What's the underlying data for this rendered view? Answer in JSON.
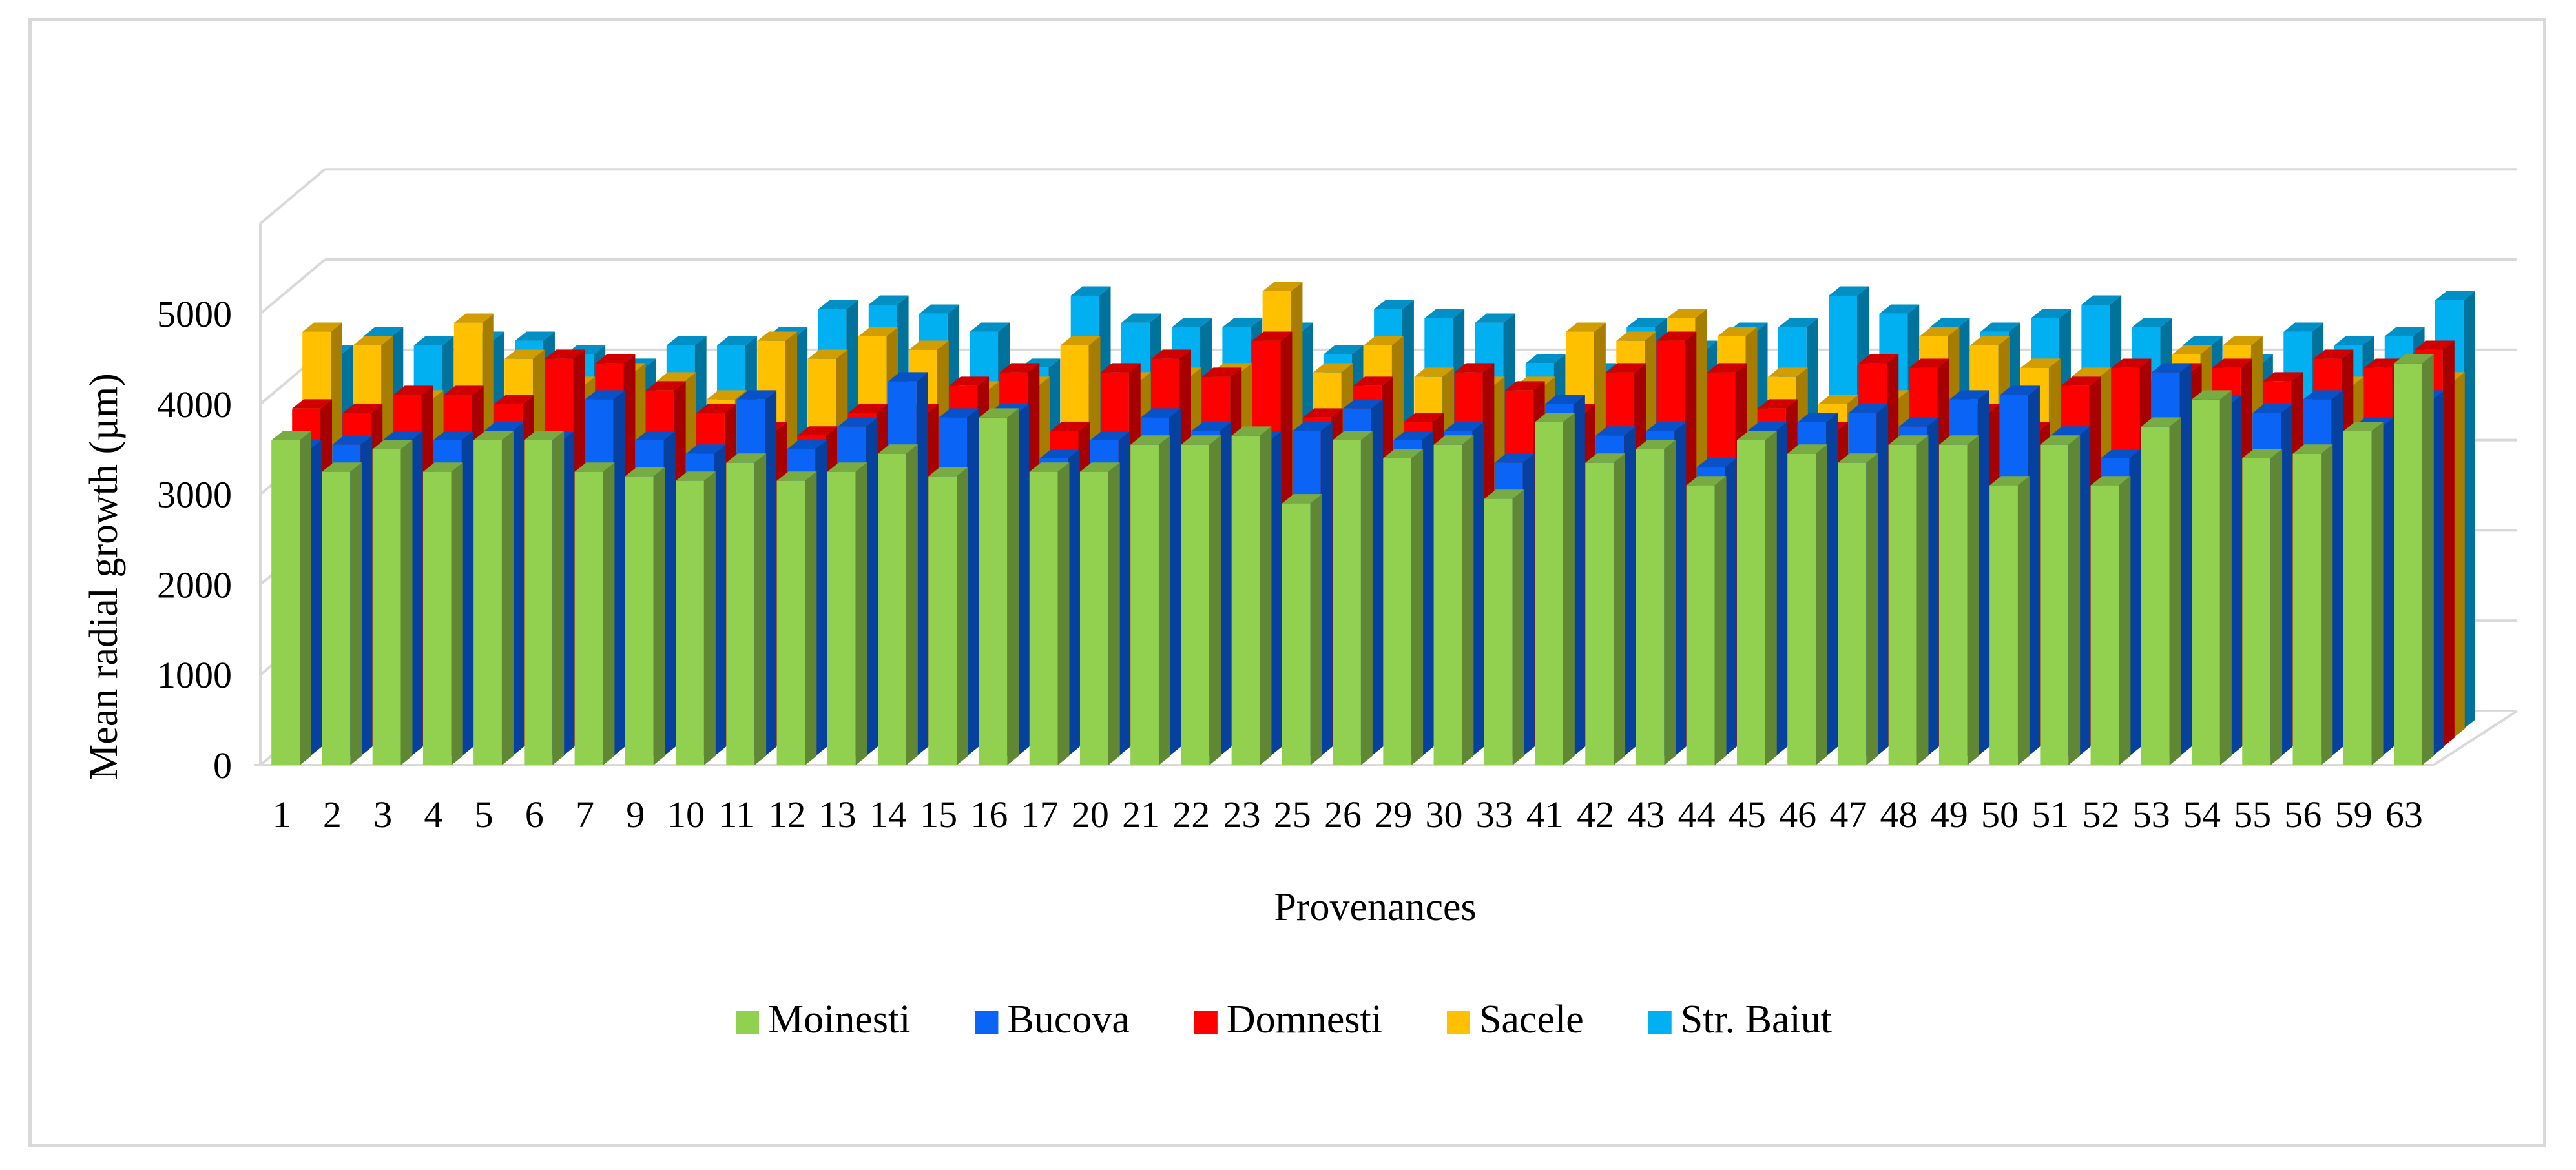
{
  "chart_data": {
    "type": "bar",
    "variant": "3d-clustered",
    "title": "",
    "xlabel": "Provenances",
    "ylabel": "Mean radial growth (µm)",
    "ylim": [
      0,
      5000
    ],
    "yticks": [
      0,
      1000,
      2000,
      3000,
      4000,
      5000
    ],
    "grid": true,
    "legend_position": "bottom",
    "categories": [
      "1",
      "2",
      "3",
      "4",
      "5",
      "6",
      "7",
      "9",
      "10",
      "11",
      "12",
      "13",
      "14",
      "15",
      "16",
      "17",
      "20",
      "21",
      "22",
      "23",
      "25",
      "26",
      "29",
      "30",
      "33",
      "41",
      "42",
      "43",
      "44",
      "45",
      "46",
      "47",
      "48",
      "49",
      "50",
      "51",
      "52",
      "53",
      "54",
      "55",
      "56",
      "59",
      "63"
    ],
    "series": [
      {
        "name": "Moinesti",
        "color": "#92d050",
        "values": [
          3600,
          3250,
          3500,
          3250,
          3600,
          3600,
          3250,
          3200,
          3150,
          3350,
          3150,
          3250,
          3450,
          3200,
          3850,
          3250,
          3250,
          3550,
          3550,
          3650,
          2900,
          3600,
          3400,
          3550,
          2950,
          3800,
          3350,
          3500,
          3100,
          3600,
          3450,
          3350,
          3550,
          3550,
          3100,
          3550,
          3100,
          3750,
          4050,
          3400,
          3450,
          3700,
          4450
        ]
      },
      {
        "name": "Bucova",
        "color": "#0a64f5",
        "values": [
          3400,
          3450,
          3500,
          3500,
          3600,
          3500,
          3950,
          3500,
          3350,
          3950,
          3400,
          3650,
          4150,
          3750,
          3800,
          3300,
          3500,
          3750,
          3600,
          3500,
          3600,
          3850,
          3500,
          3600,
          3250,
          3900,
          3550,
          3600,
          3200,
          3600,
          3700,
          3800,
          3650,
          3950,
          4000,
          3550,
          3300,
          4250,
          3900,
          3800,
          3950,
          3650,
          3950
        ]
      },
      {
        "name": "Domnesti",
        "color": "#ff0000",
        "values": [
          3750,
          3700,
          3900,
          3900,
          3800,
          4300,
          4250,
          3950,
          3700,
          3500,
          3450,
          3700,
          3700,
          4000,
          4150,
          3500,
          4150,
          4300,
          4100,
          4500,
          3650,
          4000,
          3600,
          4150,
          3950,
          3700,
          4150,
          4500,
          4150,
          3750,
          3500,
          4250,
          4200,
          3700,
          3500,
          4000,
          4200,
          4150,
          4200,
          4050,
          4300,
          4200,
          4400
        ]
      },
      {
        "name": "Sacele",
        "color": "#ffc000",
        "values": [
          4500,
          4350,
          3750,
          4600,
          4200,
          3900,
          4050,
          3950,
          3750,
          4400,
          4200,
          4450,
          4300,
          3850,
          3900,
          4350,
          3950,
          4000,
          4050,
          4950,
          4050,
          4350,
          4000,
          3900,
          3900,
          4500,
          4400,
          4650,
          4450,
          4000,
          3700,
          3750,
          4450,
          4350,
          4100,
          4000,
          3950,
          4250,
          4350,
          3650,
          3900,
          3900,
          3950
        ]
      },
      {
        "name": "Str. Baiut",
        "color": "#00b0f0",
        "values": [
          4150,
          4350,
          4250,
          4300,
          4300,
          4150,
          4000,
          4250,
          4250,
          4350,
          4650,
          4700,
          4600,
          4400,
          4000,
          4800,
          4500,
          4450,
          4450,
          4400,
          4150,
          4650,
          4550,
          4500,
          4050,
          3950,
          4450,
          4200,
          4400,
          4450,
          4800,
          4600,
          4450,
          4400,
          4550,
          4700,
          4450,
          4250,
          4050,
          4400,
          4250,
          4350,
          4750
        ]
      }
    ]
  }
}
